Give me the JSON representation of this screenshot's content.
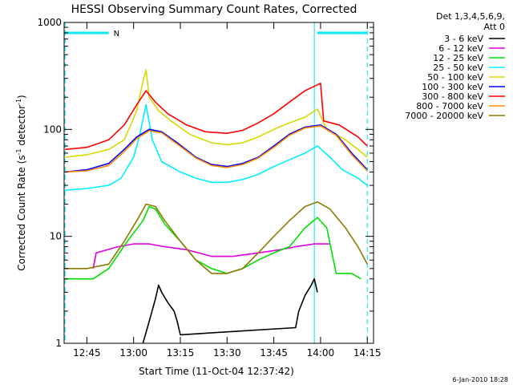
{
  "chart_data": {
    "type": "line",
    "title": "HESSI Observing Summary Count Rates, Corrected",
    "xlabel": "Start Time (11-Oct-04 12:37:42)",
    "ylabel_main": "Corrected Count Rate (s",
    "ylabel_sup1": "-1",
    "ylabel_mid": " detector",
    "ylabel_sup2": "-1",
    "ylabel_end": ")",
    "yscale": "log",
    "ylim": [
      1,
      1000
    ],
    "xlim": [
      "12:37:42",
      "14:17:00"
    ],
    "x_ticks": [
      "12:45",
      "13:00",
      "13:15",
      "13:30",
      "13:45",
      "14:00",
      "14:15"
    ],
    "y_ticks": [
      "1",
      "10",
      "100",
      "1000"
    ],
    "legend_header": [
      "Det 1,3,4,5,6,9,",
      "Att 0"
    ],
    "legend_position": "right",
    "night_marker_label": "N",
    "footer_date": "6-Jan-2010 18:28",
    "colors": {
      "axis": "#000000",
      "marker": "#00e8f0"
    },
    "night_intervals": [
      [
        "12:38",
        "12:52"
      ],
      [
        "13:59",
        "14:15"
      ]
    ],
    "saa_lines": [
      "12:38",
      "13:58",
      "14:15"
    ],
    "series": [
      {
        "name": "3 - 6 keV",
        "color": "#000000",
        "points": [
          [
            "13:03",
            1
          ],
          [
            "13:05",
            1.6
          ],
          [
            "13:07",
            2.6
          ],
          [
            "13:08",
            3.5
          ],
          [
            "13:09",
            3
          ],
          [
            "13:11",
            2.4
          ],
          [
            "13:13",
            2
          ],
          [
            "13:14",
            1.6
          ],
          [
            "13:15",
            1.2
          ],
          [
            "13:52",
            1.4
          ],
          [
            "13:53",
            2
          ],
          [
            "13:55",
            2.8
          ],
          [
            "13:57",
            3.5
          ],
          [
            "13:58",
            4
          ],
          [
            "13:59",
            3
          ]
        ]
      },
      {
        "name": "6 - 12 keV",
        "color": "#e000e0",
        "points": [
          [
            "12:47",
            5
          ],
          [
            "12:48",
            7
          ],
          [
            "12:55",
            8
          ],
          [
            "13:00",
            8.5
          ],
          [
            "13:05",
            8.5
          ],
          [
            "13:10",
            8
          ],
          [
            "13:17",
            7.5
          ],
          [
            "13:25",
            6.5
          ],
          [
            "13:32",
            6.5
          ],
          [
            "13:40",
            7
          ],
          [
            "13:47",
            7.5
          ],
          [
            "13:52",
            8
          ],
          [
            "13:58",
            8.5
          ],
          [
            "14:03",
            8.5
          ]
        ]
      },
      {
        "name": "12 - 25 keV",
        "color": "#00e000",
        "points": [
          [
            "12:38",
            4
          ],
          [
            "12:47",
            4
          ],
          [
            "12:52",
            5
          ],
          [
            "12:58",
            9
          ],
          [
            "13:03",
            14
          ],
          [
            "13:05",
            19
          ],
          [
            "13:07",
            18
          ],
          [
            "13:10",
            13
          ],
          [
            "13:15",
            9
          ],
          [
            "13:20",
            6
          ],
          [
            "13:25",
            5
          ],
          [
            "13:30",
            4.5
          ],
          [
            "13:35",
            5
          ],
          [
            "13:40",
            6
          ],
          [
            "13:45",
            7
          ],
          [
            "13:50",
            8
          ],
          [
            "13:55",
            12
          ],
          [
            "13:59",
            15
          ],
          [
            "14:02",
            12
          ],
          [
            "14:05",
            4.5
          ],
          [
            "14:10",
            4.5
          ],
          [
            "14:13",
            4
          ]
        ]
      },
      {
        "name": "25 - 50 keV",
        "color": "#00f0ff",
        "points": [
          [
            "12:38",
            27
          ],
          [
            "12:45",
            28
          ],
          [
            "12:52",
            30
          ],
          [
            "12:56",
            35
          ],
          [
            "13:00",
            55
          ],
          [
            "13:02",
            90
          ],
          [
            "13:04",
            170
          ],
          [
            "13:06",
            80
          ],
          [
            "13:09",
            50
          ],
          [
            "13:15",
            40
          ],
          [
            "13:20",
            35
          ],
          [
            "13:25",
            32
          ],
          [
            "13:30",
            32
          ],
          [
            "13:35",
            34
          ],
          [
            "13:40",
            38
          ],
          [
            "13:45",
            45
          ],
          [
            "13:50",
            52
          ],
          [
            "13:55",
            60
          ],
          [
            "13:59",
            70
          ],
          [
            "14:03",
            55
          ],
          [
            "14:07",
            42
          ],
          [
            "14:12",
            35
          ],
          [
            "14:15",
            30
          ]
        ]
      },
      {
        "name": "50 - 100 keV",
        "color": "#d8d800",
        "points": [
          [
            "12:38",
            55
          ],
          [
            "12:45",
            58
          ],
          [
            "12:52",
            65
          ],
          [
            "12:57",
            80
          ],
          [
            "13:01",
            150
          ],
          [
            "13:03",
            280
          ],
          [
            "13:04",
            360
          ],
          [
            "13:05",
            200
          ],
          [
            "13:08",
            150
          ],
          [
            "13:12",
            120
          ],
          [
            "13:18",
            90
          ],
          [
            "13:25",
            75
          ],
          [
            "13:30",
            72
          ],
          [
            "13:35",
            75
          ],
          [
            "13:40",
            85
          ],
          [
            "13:45",
            100
          ],
          [
            "13:50",
            115
          ],
          [
            "13:55",
            130
          ],
          [
            "13:59",
            155
          ],
          [
            "14:02",
            100
          ],
          [
            "14:08",
            80
          ],
          [
            "14:12",
            65
          ],
          [
            "14:15",
            55
          ]
        ]
      },
      {
        "name": "100 - 300 keV",
        "color": "#0000ff",
        "points": [
          [
            "12:38",
            40
          ],
          [
            "12:45",
            42
          ],
          [
            "12:52",
            48
          ],
          [
            "12:57",
            65
          ],
          [
            "13:01",
            85
          ],
          [
            "13:05",
            100
          ],
          [
            "13:09",
            95
          ],
          [
            "13:14",
            75
          ],
          [
            "13:20",
            55
          ],
          [
            "13:25",
            47
          ],
          [
            "13:30",
            45
          ],
          [
            "13:35",
            48
          ],
          [
            "13:40",
            55
          ],
          [
            "13:45",
            70
          ],
          [
            "13:50",
            90
          ],
          [
            "13:55",
            105
          ],
          [
            "14:00",
            110
          ],
          [
            "14:05",
            90
          ],
          [
            "14:10",
            60
          ],
          [
            "14:15",
            42
          ]
        ]
      },
      {
        "name": "300 - 800 keV",
        "color": "#ff0000",
        "points": [
          [
            "12:38",
            65
          ],
          [
            "12:45",
            68
          ],
          [
            "12:52",
            80
          ],
          [
            "12:57",
            110
          ],
          [
            "13:01",
            170
          ],
          [
            "13:04",
            230
          ],
          [
            "13:07",
            180
          ],
          [
            "13:11",
            140
          ],
          [
            "13:17",
            110
          ],
          [
            "13:23",
            95
          ],
          [
            "13:30",
            92
          ],
          [
            "13:35",
            98
          ],
          [
            "13:40",
            115
          ],
          [
            "13:45",
            140
          ],
          [
            "13:50",
            180
          ],
          [
            "13:55",
            230
          ],
          [
            "14:00",
            270
          ],
          [
            "14:01",
            120
          ],
          [
            "14:06",
            110
          ],
          [
            "14:12",
            85
          ],
          [
            "14:15",
            70
          ]
        ]
      },
      {
        "name": "800 - 7000 keV",
        "color": "#ff8c00",
        "points": [
          [
            "12:38",
            40
          ],
          [
            "12:45",
            41
          ],
          [
            "12:52",
            46
          ],
          [
            "12:57",
            62
          ],
          [
            "13:01",
            82
          ],
          [
            "13:05",
            97
          ],
          [
            "13:09",
            93
          ],
          [
            "13:14",
            73
          ],
          [
            "13:20",
            54
          ],
          [
            "13:25",
            46
          ],
          [
            "13:30",
            44
          ],
          [
            "13:35",
            47
          ],
          [
            "13:40",
            54
          ],
          [
            "13:45",
            68
          ],
          [
            "13:50",
            88
          ],
          [
            "13:55",
            103
          ],
          [
            "14:00",
            108
          ],
          [
            "14:05",
            88
          ],
          [
            "14:10",
            58
          ],
          [
            "14:15",
            41
          ]
        ]
      },
      {
        "name": "7000 - 20000 keV",
        "color": "#8c7a00",
        "points": [
          [
            "12:38",
            5
          ],
          [
            "12:45",
            5
          ],
          [
            "12:52",
            5.5
          ],
          [
            "12:57",
            9
          ],
          [
            "13:01",
            14
          ],
          [
            "13:04",
            20
          ],
          [
            "13:07",
            19
          ],
          [
            "13:10",
            14
          ],
          [
            "13:15",
            9
          ],
          [
            "13:20",
            6
          ],
          [
            "13:25",
            4.5
          ],
          [
            "13:30",
            4.5
          ],
          [
            "13:35",
            5
          ],
          [
            "13:40",
            7
          ],
          [
            "13:45",
            10
          ],
          [
            "13:50",
            14
          ],
          [
            "13:55",
            19
          ],
          [
            "13:59",
            21
          ],
          [
            "14:03",
            18
          ],
          [
            "14:08",
            12
          ],
          [
            "14:12",
            8
          ],
          [
            "14:15",
            5.5
          ]
        ]
      }
    ]
  }
}
